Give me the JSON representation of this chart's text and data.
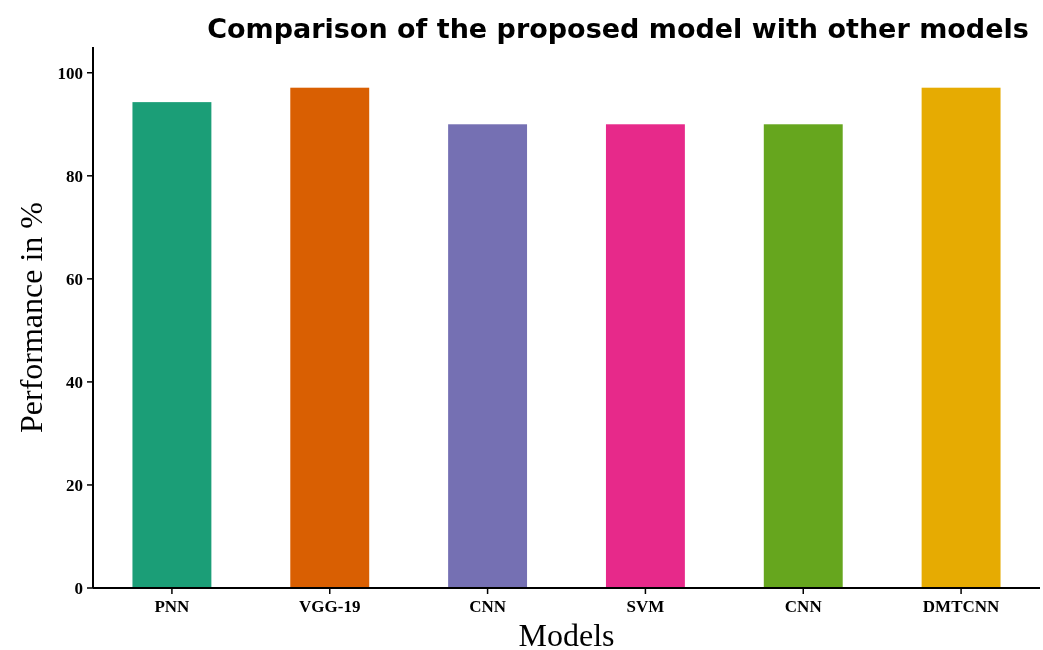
{
  "chart_data": {
    "type": "bar",
    "title": "Comparison of the proposed model with other models",
    "xlabel": "Models",
    "ylabel": "Performance in %",
    "categories": [
      "PNN",
      "VGG-19",
      "CNN",
      "SVM",
      "CNN",
      "DMTCNN"
    ],
    "values": [
      94.3,
      97.1,
      90,
      90,
      90,
      97.1
    ],
    "colors": [
      "#1b9e77",
      "#d95f02",
      "#7570b3",
      "#e7298a",
      "#66a61e",
      "#e6ab02"
    ],
    "ylim": [
      0,
      105
    ],
    "yticks": [
      0,
      20,
      40,
      60,
      80,
      100
    ],
    "grid": false
  }
}
